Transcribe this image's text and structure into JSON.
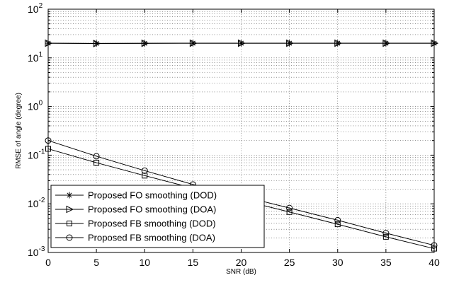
{
  "chart_data": {
    "type": "line",
    "xlabel": "SNR (dB)",
    "ylabel": "RMSE of angle (degree)",
    "xlim": [
      0,
      40
    ],
    "ylim": [
      0.001,
      100
    ],
    "yscale": "log",
    "grid": true,
    "legend_position": "bottom-left",
    "x_ticks": [
      "0",
      "5",
      "10",
      "15",
      "20",
      "25",
      "30",
      "35",
      "40"
    ],
    "y_ticks": [
      {
        "base": "10",
        "exp": "-3"
      },
      {
        "base": "10",
        "exp": "-2"
      },
      {
        "base": "10",
        "exp": "-1"
      },
      {
        "base": "10",
        "exp": "0"
      },
      {
        "base": "10",
        "exp": "1"
      },
      {
        "base": "10",
        "exp": "2"
      }
    ],
    "x": [
      0,
      5,
      10,
      15,
      20,
      25,
      30,
      35,
      40
    ],
    "series": [
      {
        "name": "Proposed FO smoothing (DOD)",
        "marker": "star",
        "values": [
          20,
          19.8,
          19.9,
          20,
          20,
          20,
          20,
          20,
          20
        ]
      },
      {
        "name": "Proposed FO smoothing (DOA)",
        "marker": "triangle-right",
        "values": [
          20,
          19.7,
          19.9,
          20,
          20,
          20,
          20,
          20,
          20
        ]
      },
      {
        "name": "Proposed FB smoothing (DOD)",
        "marker": "square",
        "values": [
          0.135,
          0.07,
          0.038,
          0.021,
          0.012,
          0.0068,
          0.0038,
          0.0021,
          0.0012
        ]
      },
      {
        "name": "Proposed FB smoothing (DOA)",
        "marker": "circle",
        "values": [
          0.2,
          0.095,
          0.048,
          0.025,
          0.0145,
          0.0082,
          0.0046,
          0.0025,
          0.0014
        ]
      }
    ]
  }
}
